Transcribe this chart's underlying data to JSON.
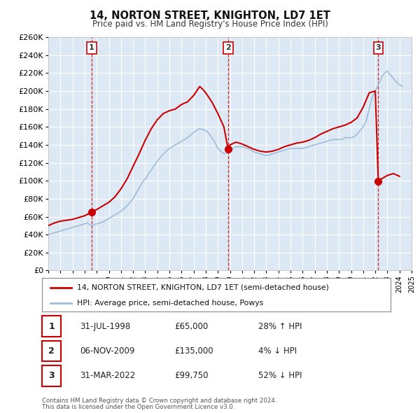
{
  "title": "14, NORTON STREET, KNIGHTON, LD7 1ET",
  "subtitle": "Price paid vs. HM Land Registry's House Price Index (HPI)",
  "ylim": [
    0,
    260000
  ],
  "background_color": "#ffffff",
  "plot_bg_color": "#dce9f5",
  "grid_color": "#ffffff",
  "hpi_color": "#a0bcd8",
  "price_color": "#cc0000",
  "vline_color": "#cc0000",
  "legend_price_label": "14, NORTON STREET, KNIGHTON, LD7 1ET (semi-detached house)",
  "legend_hpi_label": "HPI: Average price, semi-detached house, Powys",
  "footer1": "Contains HM Land Registry data © Crown copyright and database right 2024.",
  "footer2": "This data is licensed under the Open Government Licence v3.0.",
  "sales": [
    {
      "num": "1",
      "date": "31-JUL-1998",
      "price": "£65,000",
      "hpi_rel": "28% ↑ HPI",
      "year": 1998.58,
      "value": 65000
    },
    {
      "num": "2",
      "date": "06-NOV-2009",
      "price": "£135,000",
      "hpi_rel": "4% ↓ HPI",
      "year": 2009.85,
      "value": 135000
    },
    {
      "num": "3",
      "date": "31-MAR-2022",
      "price": "£99,750",
      "hpi_rel": "52% ↓ HPI",
      "year": 2022.25,
      "value": 99750
    }
  ],
  "hpi_years": [
    1995.0,
    1995.25,
    1995.5,
    1995.75,
    1996.0,
    1996.25,
    1996.5,
    1996.75,
    1997.0,
    1997.25,
    1997.5,
    1997.75,
    1998.0,
    1998.25,
    1998.5,
    1998.75,
    1999.0,
    1999.25,
    1999.5,
    1999.75,
    2000.0,
    2000.25,
    2000.5,
    2000.75,
    2001.0,
    2001.25,
    2001.5,
    2001.75,
    2002.0,
    2002.25,
    2002.5,
    2002.75,
    2003.0,
    2003.25,
    2003.5,
    2003.75,
    2004.0,
    2004.25,
    2004.5,
    2004.75,
    2005.0,
    2005.25,
    2005.5,
    2005.75,
    2006.0,
    2006.25,
    2006.5,
    2006.75,
    2007.0,
    2007.25,
    2007.5,
    2007.75,
    2008.0,
    2008.25,
    2008.5,
    2008.75,
    2009.0,
    2009.25,
    2009.5,
    2009.75,
    2010.0,
    2010.25,
    2010.5,
    2010.75,
    2011.0,
    2011.25,
    2011.5,
    2011.75,
    2012.0,
    2012.25,
    2012.5,
    2012.75,
    2013.0,
    2013.25,
    2013.5,
    2013.75,
    2014.0,
    2014.25,
    2014.5,
    2014.75,
    2015.0,
    2015.25,
    2015.5,
    2015.75,
    2016.0,
    2016.25,
    2016.5,
    2016.75,
    2017.0,
    2017.25,
    2017.5,
    2017.75,
    2018.0,
    2018.25,
    2018.5,
    2018.75,
    2019.0,
    2019.25,
    2019.5,
    2019.75,
    2020.0,
    2020.25,
    2020.5,
    2020.75,
    2021.0,
    2021.25,
    2021.5,
    2021.75,
    2022.0,
    2022.25,
    2022.5,
    2022.75,
    2023.0,
    2023.25,
    2023.5,
    2023.75,
    2024.0,
    2024.25
  ],
  "hpi_values": [
    40000,
    41000,
    42000,
    43000,
    44000,
    45000,
    46000,
    47000,
    48000,
    49000,
    50000,
    51000,
    52000,
    53000,
    50000,
    51000,
    52000,
    53000,
    54000,
    56000,
    58000,
    60000,
    62000,
    64000,
    66000,
    69000,
    72000,
    76000,
    80000,
    86000,
    92000,
    98000,
    102000,
    107000,
    112000,
    117000,
    122000,
    126000,
    130000,
    133000,
    136000,
    138000,
    140000,
    142000,
    144000,
    146000,
    148000,
    151000,
    154000,
    156000,
    158000,
    157000,
    156000,
    153000,
    148000,
    143000,
    136000,
    133000,
    130000,
    131000,
    134000,
    136000,
    138000,
    138000,
    138000,
    137000,
    136000,
    134000,
    132000,
    131000,
    130000,
    129000,
    128000,
    129000,
    130000,
    131000,
    132000,
    133000,
    134000,
    135000,
    136000,
    136000,
    136000,
    136000,
    136000,
    137000,
    138000,
    139000,
    140000,
    141000,
    142000,
    143000,
    144000,
    145000,
    146000,
    146000,
    146000,
    146000,
    148000,
    148000,
    148000,
    149000,
    152000,
    156000,
    160000,
    167000,
    180000,
    193000,
    200000,
    207000,
    215000,
    220000,
    222000,
    218000,
    214000,
    210000,
    207000,
    205000
  ],
  "price_years": [
    1995.0,
    1995.5,
    1996.0,
    1996.5,
    1997.0,
    1997.5,
    1998.0,
    1998.58,
    1999.0,
    1999.5,
    2000.0,
    2000.5,
    2001.0,
    2001.5,
    2002.0,
    2002.5,
    2003.0,
    2003.5,
    2004.0,
    2004.5,
    2005.0,
    2005.5,
    2006.0,
    2006.5,
    2007.0,
    2007.25,
    2007.5,
    2007.75,
    2008.0,
    2008.5,
    2009.0,
    2009.5,
    2009.85,
    2010.0,
    2010.5,
    2011.0,
    2011.5,
    2012.0,
    2012.5,
    2013.0,
    2013.5,
    2014.0,
    2014.5,
    2015.0,
    2015.5,
    2016.0,
    2016.5,
    2017.0,
    2017.5,
    2018.0,
    2018.5,
    2019.0,
    2019.5,
    2020.0,
    2020.5,
    2021.0,
    2021.5,
    2022.0,
    2022.25,
    2022.5,
    2023.0,
    2023.5,
    2024.0
  ],
  "price_values": [
    50000,
    53000,
    55000,
    56000,
    57000,
    59000,
    61000,
    65000,
    68000,
    72000,
    76000,
    82000,
    91000,
    102000,
    116000,
    130000,
    145000,
    158000,
    168000,
    175000,
    178000,
    180000,
    185000,
    188000,
    195000,
    200000,
    205000,
    202000,
    198000,
    188000,
    175000,
    160000,
    135000,
    140000,
    143000,
    141000,
    138000,
    135000,
    133000,
    132000,
    133000,
    135000,
    138000,
    140000,
    142000,
    143000,
    145000,
    148000,
    152000,
    155000,
    158000,
    160000,
    162000,
    165000,
    170000,
    182000,
    198000,
    200000,
    99750,
    102000,
    106000,
    108000,
    105000
  ],
  "xlim": [
    1995,
    2025
  ],
  "xtick_years": [
    1995,
    1996,
    1997,
    1998,
    1999,
    2000,
    2001,
    2002,
    2003,
    2004,
    2005,
    2006,
    2007,
    2008,
    2009,
    2010,
    2011,
    2012,
    2013,
    2014,
    2015,
    2016,
    2017,
    2018,
    2019,
    2020,
    2021,
    2022,
    2023,
    2024,
    2025
  ]
}
